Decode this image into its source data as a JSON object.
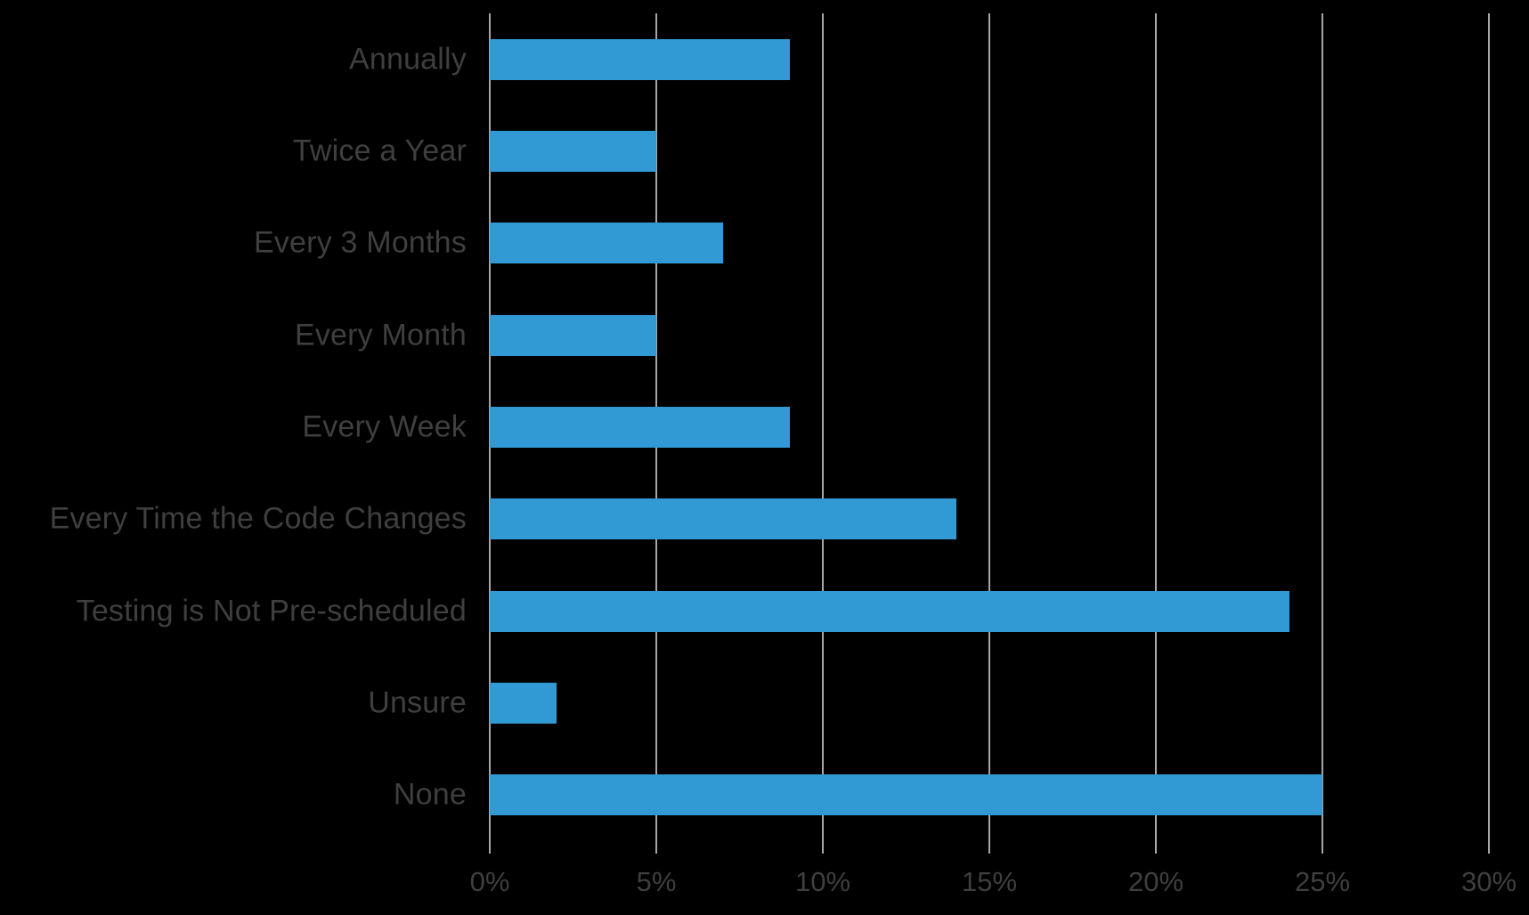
{
  "chart_data": {
    "type": "bar",
    "orientation": "horizontal",
    "title": "",
    "xlabel": "",
    "ylabel": "",
    "categories": [
      "Annually",
      "Twice a Year",
      "Every 3 Months",
      "Every Month",
      "Every Week",
      "Every Time the Code Changes",
      "Testing is Not Pre-scheduled",
      "Unsure",
      "None"
    ],
    "values": [
      9,
      5,
      7,
      5,
      9,
      14,
      24,
      2,
      25
    ],
    "value_unit": "%",
    "xlim": [
      0,
      30
    ],
    "x_ticks": [
      "0%",
      "5%",
      "10%",
      "15%",
      "20%",
      "25%",
      "30%"
    ],
    "grid": true,
    "legend": false,
    "colors": {
      "bar": "#319AD4",
      "gridline": "#A6A6A6",
      "label_text": "#3F3F3F",
      "background": "#000000"
    }
  }
}
